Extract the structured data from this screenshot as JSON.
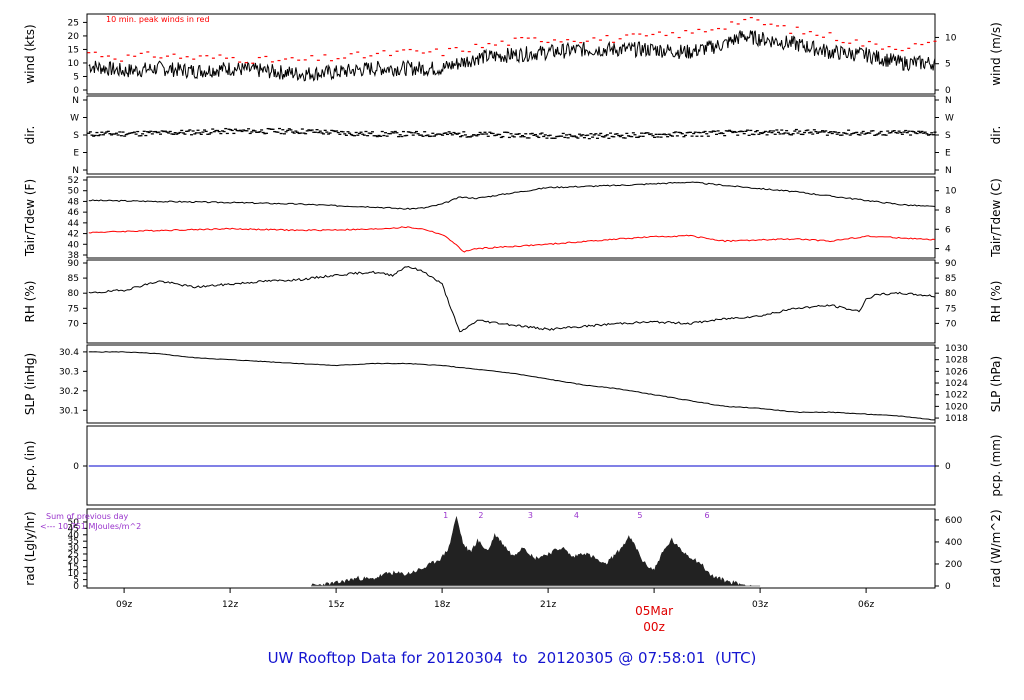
{
  "footer": {
    "title_prefix": "UW Rooftop Data for",
    "start": "20120304",
    "to": "to",
    "end": "20120305 @ 07:58:01",
    "tz": "(UTC)",
    "color": "#1515d0"
  },
  "colors": {
    "black": "#000000",
    "red": "#ff0000",
    "blue": "#0000cc",
    "purple": "#9933cc",
    "date_red": "#e00000"
  },
  "x_axis": {
    "ticks": [
      "09z",
      "12z",
      "15z",
      "18z",
      "21z",
      "00z",
      "03z",
      "06z"
    ],
    "tick_hours": [
      9,
      12,
      15,
      18,
      21,
      24,
      27,
      30
    ],
    "range_hours": [
      7.95,
      31.95
    ],
    "date_label": "05Mar",
    "date_sub": "00z"
  },
  "chart_data": [
    {
      "type": "line",
      "id": "wind",
      "ylabel_left": "wind (kts)",
      "ylabel_right": "wind (m/s)",
      "annotation": "10 min. peak winds in red",
      "ylim": [
        0,
        27
      ],
      "yticks_left": [
        0,
        5,
        10,
        15,
        20,
        25
      ],
      "yticks_right": [
        {
          "label": "0",
          "value": 0
        },
        {
          "label": "5",
          "value": 9.72
        },
        {
          "label": "10",
          "value": 19.44
        }
      ],
      "series": [
        {
          "role": "mean",
          "color": "#000000",
          "x": [
            8,
            9,
            10,
            11,
            12,
            13,
            14,
            15,
            16,
            17,
            18,
            19,
            20,
            21,
            22,
            23,
            24,
            25,
            26,
            26.5,
            27,
            28,
            29,
            30,
            31,
            31.95
          ],
          "y": [
            9,
            7,
            8,
            7,
            8,
            7,
            6,
            6.5,
            8,
            8,
            8,
            12,
            13,
            14,
            15,
            15,
            15,
            14,
            17,
            20,
            19,
            17,
            14,
            13,
            10,
            10
          ]
        },
        {
          "role": "peak",
          "color": "#ff0000",
          "x": [
            8,
            9,
            10,
            11,
            12,
            13,
            14,
            15,
            16,
            17,
            18,
            19,
            20,
            21,
            22,
            23,
            24,
            25,
            26,
            26.5,
            27,
            28,
            29,
            30,
            31,
            31.95
          ],
          "y": [
            14,
            12,
            13,
            12,
            12,
            11,
            11,
            12,
            13,
            14,
            14,
            16,
            18,
            19,
            19,
            19,
            20,
            21,
            24,
            26,
            25,
            22,
            20,
            17,
            16,
            17
          ]
        }
      ]
    },
    {
      "type": "scatter",
      "id": "dir",
      "ylabel_left": "dir.",
      "ylabel_right": "dir.",
      "ylim": [
        0,
        360
      ],
      "yticks": [
        {
          "label": "N",
          "value": 360
        },
        {
          "label": "W",
          "value": 270
        },
        {
          "label": "S",
          "value": 180
        },
        {
          "label": "E",
          "value": 90
        },
        {
          "label": "N",
          "value": 0
        }
      ],
      "series": [
        {
          "color": "#000000",
          "x": [
            8,
            10,
            12,
            14,
            16,
            18,
            20,
            22,
            24,
            26,
            28,
            30,
            31.95
          ],
          "y": [
            185,
            190,
            200,
            200,
            185,
            185,
            180,
            175,
            180,
            190,
            195,
            190,
            190
          ]
        }
      ]
    },
    {
      "type": "line",
      "id": "temp",
      "ylabel_left": "Tair/Tdew (F)",
      "ylabel_right": "Tair/Tdew (C)",
      "ylim": [
        38,
        52
      ],
      "yticks_left": [
        38,
        40,
        42,
        44,
        46,
        48,
        50,
        52
      ],
      "yticks_right": [
        {
          "label": "4",
          "value": 39.2
        },
        {
          "label": "6",
          "value": 42.8
        },
        {
          "label": "8",
          "value": 46.4
        },
        {
          "label": "10",
          "value": 50
        }
      ],
      "series": [
        {
          "name": "Tair",
          "color": "#000000",
          "x": [
            8,
            10,
            12,
            14,
            15,
            16,
            17,
            17.5,
            18,
            18.5,
            19,
            20,
            21,
            22,
            23,
            24,
            25,
            26,
            27,
            28,
            29,
            30,
            31,
            31.95
          ],
          "y": [
            48.2,
            48,
            47.8,
            47.5,
            47.2,
            47,
            46.6,
            46.8,
            47.5,
            48.8,
            48.6,
            49.6,
            50.6,
            50.8,
            51,
            51.3,
            51.6,
            51,
            50.4,
            49.8,
            49,
            48.2,
            47.4,
            47
          ]
        },
        {
          "name": "Tdew",
          "color": "#ff0000",
          "x": [
            8,
            10,
            12,
            14,
            16,
            17,
            17.5,
            18,
            18.3,
            18.6,
            19,
            20,
            21,
            22,
            23,
            24,
            25,
            26,
            27,
            28,
            29,
            30,
            31,
            31.95
          ],
          "y": [
            42.2,
            42.6,
            42.9,
            42.6,
            42.8,
            43.2,
            42.8,
            41.8,
            40.5,
            38.6,
            39.2,
            39.6,
            40,
            40.5,
            41,
            41.4,
            41.6,
            40.6,
            40.8,
            41,
            40.6,
            41.5,
            41.2,
            40.8
          ]
        }
      ]
    },
    {
      "type": "line",
      "id": "rh",
      "ylabel_left": "RH (%)",
      "ylabel_right": "RH (%)",
      "ylim": [
        64.5,
        90
      ],
      "yticks_left": [
        70,
        75,
        80,
        85,
        90
      ],
      "yticks_right": [
        70,
        75,
        80,
        85,
        90
      ],
      "series": [
        {
          "color": "#000000",
          "x": [
            8,
            9,
            10,
            11,
            12,
            13,
            14,
            15,
            16,
            16.6,
            17,
            17.5,
            18,
            18.5,
            19,
            20,
            21,
            22,
            23,
            24,
            25,
            26,
            27,
            28,
            29,
            29.8,
            30,
            30.3,
            31,
            31.95
          ],
          "y": [
            80,
            81,
            84,
            82,
            83,
            84,
            84.5,
            86,
            87,
            86,
            89,
            87,
            83,
            67,
            71,
            69.5,
            68,
            69,
            70,
            70.5,
            70,
            71.5,
            72.5,
            75,
            76,
            74,
            78,
            79.5,
            80,
            79
          ]
        }
      ]
    },
    {
      "type": "line",
      "id": "slp",
      "ylabel_left": "SLP (inHg)",
      "ylabel_right": "SLP (hPa)",
      "ylim": [
        30.05,
        30.42
      ],
      "yticks_left": [
        30.1,
        30.2,
        30.3,
        30.4
      ],
      "yticks_right": [
        {
          "label": "1018",
          "value": 30.06
        },
        {
          "label": "1020",
          "value": 30.12
        },
        {
          "label": "1022",
          "value": 30.18
        },
        {
          "label": "1024",
          "value": 30.24
        },
        {
          "label": "1026",
          "value": 30.3
        },
        {
          "label": "1028",
          "value": 30.36
        },
        {
          "label": "1030",
          "value": 30.42
        }
      ],
      "series": [
        {
          "color": "#000000",
          "x": [
            8,
            9,
            10,
            11,
            12,
            13,
            14,
            15,
            16,
            17,
            18,
            19,
            20,
            21,
            22,
            23,
            24,
            25,
            26,
            27,
            28,
            29,
            30,
            31,
            31.95
          ],
          "y": [
            30.4,
            30.4,
            30.39,
            30.37,
            30.36,
            30.35,
            30.34,
            30.33,
            30.34,
            30.34,
            30.33,
            30.31,
            30.29,
            30.26,
            30.23,
            30.21,
            30.18,
            30.15,
            30.12,
            30.11,
            30.09,
            30.09,
            30.08,
            30.07,
            30.05
          ]
        }
      ]
    },
    {
      "type": "line",
      "id": "pcp",
      "ylabel_left": "pcp. (in)",
      "ylabel_right": "pcp. (mm)",
      "yticks_left": [
        "0"
      ],
      "yticks_right": [
        "0"
      ],
      "series": [
        {
          "color": "#0000cc",
          "x": [
            8,
            31.95
          ],
          "y": [
            0,
            0
          ]
        }
      ]
    },
    {
      "type": "area",
      "id": "rad",
      "ylabel_left": "rad (Lgly/hr)",
      "ylabel_right": "rad (W/m^2)",
      "annotation_line1": "Sum of previous day",
      "annotation_line2": "<--- 10.751 MJoules/m^2",
      "ylim": [
        0,
        57
      ],
      "yticks_left": [
        0,
        5,
        10,
        15,
        20,
        25,
        30,
        35,
        40,
        45,
        50
      ],
      "yticks_right": [
        {
          "label": "0",
          "value": 0
        },
        {
          "label": "200",
          "value": 17.2
        },
        {
          "label": "400",
          "value": 34.4
        },
        {
          "label": "600",
          "value": 51.6
        }
      ],
      "hour_marks": [
        {
          "label": "1",
          "hour": 18.1
        },
        {
          "label": "2",
          "hour": 19.1
        },
        {
          "label": "3",
          "hour": 20.5
        },
        {
          "label": "4",
          "hour": 21.8
        },
        {
          "label": "5",
          "hour": 23.6
        },
        {
          "label": "6",
          "hour": 25.5
        }
      ],
      "series": [
        {
          "color": "#222222",
          "x": [
            14.3,
            15,
            15.6,
            16,
            16.5,
            17,
            17.5,
            18,
            18.2,
            18.4,
            18.6,
            18.8,
            19,
            19.3,
            19.5,
            19.8,
            20,
            20.3,
            20.6,
            21,
            21.4,
            21.7,
            22,
            22.3,
            22.6,
            23,
            23.3,
            23.5,
            23.7,
            24,
            24.2,
            24.5,
            24.7,
            25,
            25.3,
            25.6,
            26,
            26.5,
            26.8
          ],
          "y": [
            0,
            2,
            6,
            5,
            10,
            9,
            14,
            22,
            30,
            54,
            32,
            26,
            35,
            27,
            40,
            30,
            23,
            31,
            21,
            25,
            30,
            22,
            26,
            22,
            16,
            27,
            38,
            29,
            18,
            12,
            24,
            36,
            29,
            23,
            18,
            8,
            4,
            1,
            0
          ]
        }
      ]
    }
  ]
}
